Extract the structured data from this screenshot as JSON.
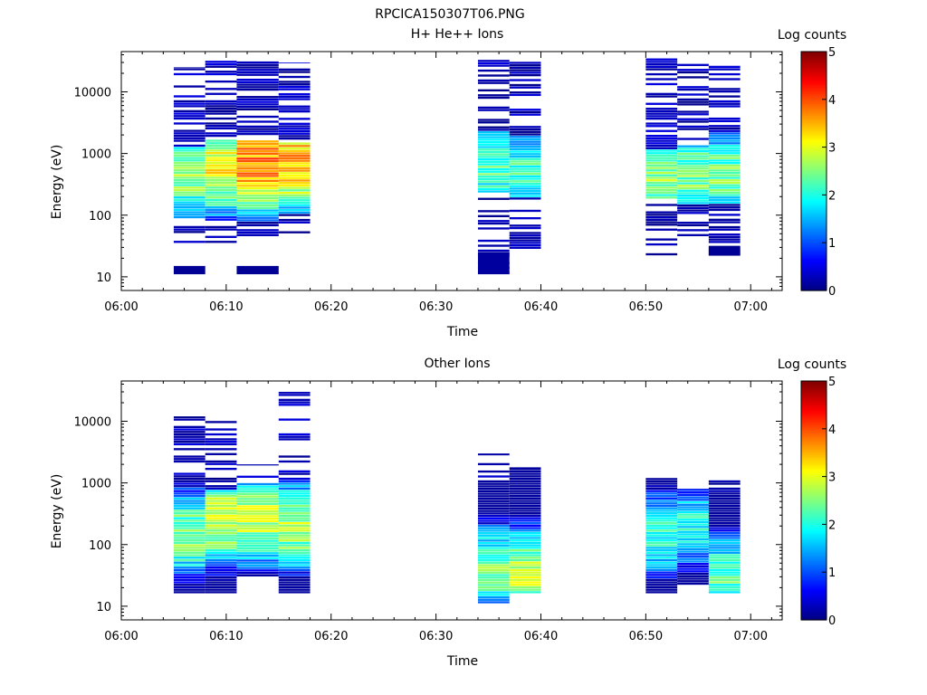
{
  "figure_title": "RPCICA150307T06.PNG",
  "chart_data": [
    {
      "type": "heatmap",
      "title": "H+ He++ Ions",
      "xlabel": "Time",
      "ylabel": "Energy (eV)",
      "x_ticks": [
        "06:00",
        "06:10",
        "06:20",
        "06:30",
        "06:40",
        "06:50",
        "07:00"
      ],
      "xlim": [
        "06:00",
        "07:03"
      ],
      "y_scale": "log",
      "y_ticks": [
        10,
        100,
        1000,
        10000
      ],
      "ylim": [
        6,
        45000
      ],
      "colorbar": {
        "label": "Log counts",
        "range": [
          0,
          5
        ],
        "ticks": [
          0,
          1,
          2,
          3,
          4,
          5
        ],
        "colormap": "jet"
      },
      "grid": false,
      "scans": [
        {
          "start": "06:05",
          "end": "06:08",
          "e_min": 35,
          "e_max": 25000,
          "peak_energy": 450,
          "peak_log_counts": 2.6,
          "sparse_above": 1300,
          "sparse_below": 90,
          "extra_bands": [
            [
              11,
              15,
              0.1
            ]
          ]
        },
        {
          "start": "06:08",
          "end": "06:11",
          "e_min": 35,
          "e_max": 33000,
          "peak_energy": 600,
          "peak_log_counts": 3.1,
          "sparse_above": 1600,
          "sparse_below": 80
        },
        {
          "start": "06:11",
          "end": "06:15",
          "e_min": 45,
          "e_max": 33000,
          "peak_energy": 700,
          "peak_log_counts": 3.7,
          "sparse_above": 1600,
          "sparse_below": 80,
          "extra_bands": [
            [
              11,
              15,
              0.1
            ]
          ]
        },
        {
          "start": "06:15",
          "end": "06:18",
          "e_min": 50,
          "e_max": 30000,
          "peak_energy": 750,
          "peak_log_counts": 3.5,
          "sparse_above": 1500,
          "sparse_below": 100
        },
        {
          "start": "06:34",
          "end": "06:37",
          "e_min": 11,
          "e_max": 33000,
          "peak_energy": 600,
          "peak_log_counts": 2.3,
          "sparse_above": 2200,
          "sparse_below": 230,
          "extra_bands": [
            [
              11,
              25,
              0.15
            ]
          ]
        },
        {
          "start": "06:37",
          "end": "06:40",
          "e_min": 28,
          "e_max": 40000,
          "peak_energy": 500,
          "peak_log_counts": 2.2,
          "sparse_above": 2000,
          "sparse_below": 200
        },
        {
          "start": "06:50",
          "end": "06:53",
          "e_min": 22,
          "e_max": 35000,
          "peak_energy": 500,
          "peak_log_counts": 2.6,
          "sparse_above": 1200,
          "sparse_below": 180
        },
        {
          "start": "06:53",
          "end": "06:56",
          "e_min": 45,
          "e_max": 37000,
          "peak_energy": 450,
          "peak_log_counts": 2.5,
          "sparse_above": 1400,
          "sparse_below": 150
        },
        {
          "start": "06:56",
          "end": "06:59",
          "e_min": 22,
          "e_max": 28000,
          "peak_energy": 450,
          "peak_log_counts": 2.4,
          "sparse_above": 2500,
          "sparse_below": 150,
          "extra_bands": [
            [
              22,
              30,
              0.1
            ]
          ]
        }
      ]
    },
    {
      "type": "heatmap",
      "title": "Other Ions",
      "xlabel": "Time",
      "ylabel": "Energy (eV)",
      "x_ticks": [
        "06:00",
        "06:10",
        "06:20",
        "06:30",
        "06:40",
        "06:50",
        "07:00"
      ],
      "xlim": [
        "06:00",
        "07:03"
      ],
      "y_scale": "log",
      "y_ticks": [
        10,
        100,
        1000,
        10000
      ],
      "ylim": [
        6,
        45000
      ],
      "colorbar": {
        "label": "Log counts",
        "range": [
          0,
          5
        ],
        "ticks": [
          0,
          1,
          2,
          3,
          4,
          5
        ],
        "colormap": "jet"
      },
      "grid": false,
      "scans": [
        {
          "start": "06:05",
          "end": "06:08",
          "e_min": 16,
          "e_max": 12000,
          "peak_energy": 150,
          "peak_log_counts": 2.5,
          "sparse_above": 1200,
          "sparse_below": 0
        },
        {
          "start": "06:08",
          "end": "06:11",
          "e_min": 16,
          "e_max": 11000,
          "peak_energy": 250,
          "peak_log_counts": 2.9,
          "sparse_above": 800,
          "sparse_below": 0
        },
        {
          "start": "06:11",
          "end": "06:15",
          "e_min": 30,
          "e_max": 2000,
          "peak_energy": 250,
          "peak_log_counts": 2.8,
          "sparse_above": 1000,
          "sparse_below": 0
        },
        {
          "start": "06:15",
          "end": "06:18",
          "e_min": 16,
          "e_max": 30000,
          "peak_energy": 200,
          "peak_log_counts": 2.7,
          "sparse_above": 1100,
          "sparse_below": 0
        },
        {
          "start": "06:34",
          "end": "06:37",
          "e_min": 11,
          "e_max": 3000,
          "peak_energy": 40,
          "peak_log_counts": 2.4,
          "sparse_above": 1100,
          "sparse_below": 0
        },
        {
          "start": "06:37",
          "end": "06:40",
          "e_min": 16,
          "e_max": 1800,
          "peak_energy": 35,
          "peak_log_counts": 2.8,
          "sparse_above": 1800,
          "sparse_below": 0
        },
        {
          "start": "06:50",
          "end": "06:53",
          "e_min": 16,
          "e_max": 1200,
          "peak_energy": 150,
          "peak_log_counts": 2.1,
          "sparse_above": 900,
          "sparse_below": 0
        },
        {
          "start": "06:53",
          "end": "06:56",
          "e_min": 22,
          "e_max": 800,
          "peak_energy": 200,
          "peak_log_counts": 2.0,
          "sparse_above": 800,
          "sparse_below": 0
        },
        {
          "start": "06:56",
          "end": "06:59",
          "e_min": 16,
          "e_max": 1100,
          "peak_energy": 30,
          "peak_log_counts": 2.3,
          "sparse_above": 700,
          "sparse_below": 0
        }
      ]
    }
  ]
}
